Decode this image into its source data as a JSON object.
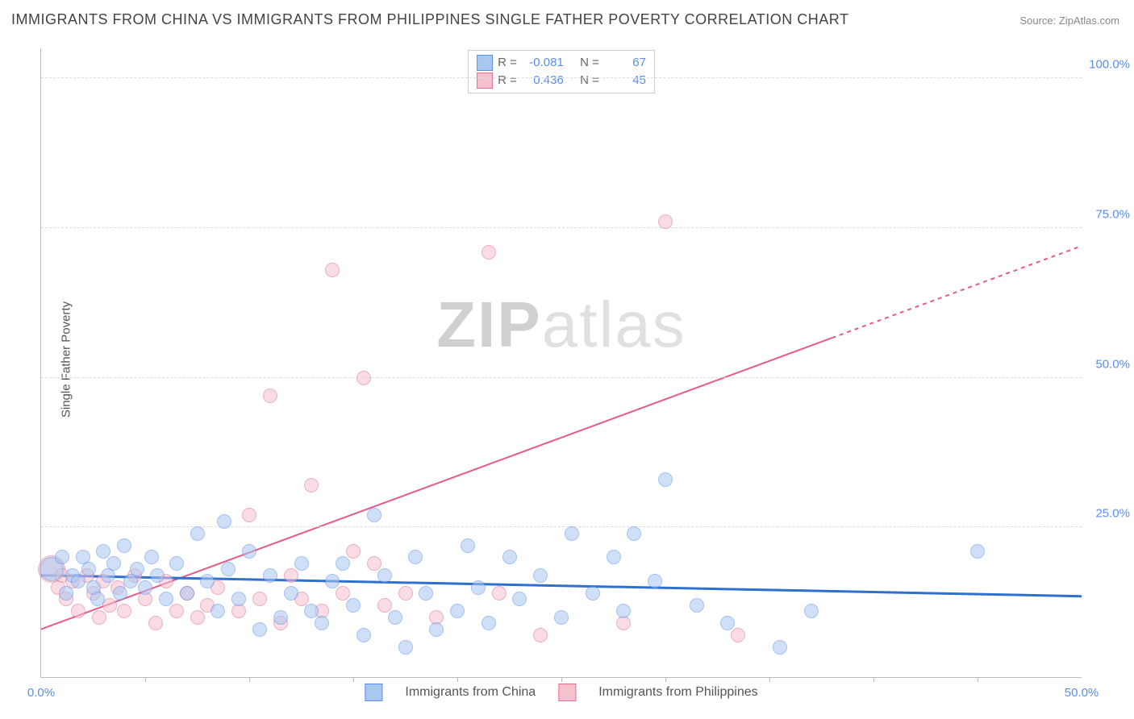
{
  "title": "IMMIGRANTS FROM CHINA VS IMMIGRANTS FROM PHILIPPINES SINGLE FATHER POVERTY CORRELATION CHART",
  "source": "Source: ZipAtlas.com",
  "y_axis_label": "Single Father Poverty",
  "watermark": {
    "bold": "ZIP",
    "rest": "atlas"
  },
  "colors": {
    "series_a_fill": "#a9c8ef",
    "series_a_stroke": "#5b8def",
    "series_b_fill": "#f5c1cf",
    "series_b_stroke": "#e06f92",
    "axis_text": "#5b8def",
    "grid": "#dddddd",
    "title_text": "#444444",
    "trend_a": "#2f6fd0",
    "trend_b": "#e65a86"
  },
  "axes": {
    "xmin": 0.0,
    "xmax": 50.0,
    "ymin": 0.0,
    "ymax": 105.0,
    "x_ticks": [
      0.0,
      50.0
    ],
    "x_tick_labels": [
      "0.0%",
      "50.0%"
    ],
    "x_minor_ticks": [
      5,
      10,
      15,
      20,
      25,
      30,
      35,
      40,
      45
    ],
    "y_gridlines": [
      25.0,
      50.0,
      75.0,
      100.0
    ],
    "y_tick_labels": [
      "25.0%",
      "50.0%",
      "75.0%",
      "100.0%"
    ]
  },
  "stats": {
    "rows": [
      {
        "swatch": "a",
        "R": "-0.081",
        "N": "67"
      },
      {
        "swatch": "b",
        "R": "0.436",
        "N": "45"
      }
    ],
    "R_label": "R =",
    "N_label": "N ="
  },
  "legend": {
    "a": "Immigrants from China",
    "b": "Immigrants from Philippines"
  },
  "point_style": {
    "radius": 8,
    "fill_opacity": 0.55,
    "stroke_width": 1
  },
  "trend_lines": {
    "a": {
      "x1": 0,
      "y1": 17.0,
      "x2": 50,
      "y2": 13.5,
      "stroke_width": 3,
      "dashed_from_x": null
    },
    "b": {
      "x1": 0,
      "y1": 8.0,
      "x2": 50,
      "y2": 72.0,
      "stroke_width": 2,
      "dashed_from_x": 38
    }
  },
  "series_a": [
    {
      "x": 0.5,
      "y": 18,
      "r": 14
    },
    {
      "x": 1.0,
      "y": 20
    },
    {
      "x": 1.2,
      "y": 14
    },
    {
      "x": 1.5,
      "y": 17
    },
    {
      "x": 1.8,
      "y": 16
    },
    {
      "x": 2.0,
      "y": 20
    },
    {
      "x": 2.3,
      "y": 18
    },
    {
      "x": 2.5,
      "y": 15
    },
    {
      "x": 2.7,
      "y": 13
    },
    {
      "x": 3.0,
      "y": 21
    },
    {
      "x": 3.2,
      "y": 17
    },
    {
      "x": 3.5,
      "y": 19
    },
    {
      "x": 3.8,
      "y": 14
    },
    {
      "x": 4.0,
      "y": 22
    },
    {
      "x": 4.3,
      "y": 16
    },
    {
      "x": 4.6,
      "y": 18
    },
    {
      "x": 5.0,
      "y": 15
    },
    {
      "x": 5.3,
      "y": 20
    },
    {
      "x": 5.6,
      "y": 17
    },
    {
      "x": 6.0,
      "y": 13
    },
    {
      "x": 6.5,
      "y": 19
    },
    {
      "x": 7.0,
      "y": 14
    },
    {
      "x": 7.5,
      "y": 24
    },
    {
      "x": 8.0,
      "y": 16
    },
    {
      "x": 8.5,
      "y": 11
    },
    {
      "x": 8.8,
      "y": 26
    },
    {
      "x": 9.0,
      "y": 18
    },
    {
      "x": 9.5,
      "y": 13
    },
    {
      "x": 10.0,
      "y": 21
    },
    {
      "x": 10.5,
      "y": 8
    },
    {
      "x": 11.0,
      "y": 17
    },
    {
      "x": 11.5,
      "y": 10
    },
    {
      "x": 12.0,
      "y": 14
    },
    {
      "x": 12.5,
      "y": 19
    },
    {
      "x": 13.0,
      "y": 11
    },
    {
      "x": 13.5,
      "y": 9
    },
    {
      "x": 14.0,
      "y": 16
    },
    {
      "x": 14.5,
      "y": 19
    },
    {
      "x": 15.0,
      "y": 12
    },
    {
      "x": 15.5,
      "y": 7
    },
    {
      "x": 16.0,
      "y": 27
    },
    {
      "x": 16.5,
      "y": 17
    },
    {
      "x": 17.0,
      "y": 10
    },
    {
      "x": 17.5,
      "y": 5
    },
    {
      "x": 18.0,
      "y": 20
    },
    {
      "x": 18.5,
      "y": 14
    },
    {
      "x": 19.0,
      "y": 8
    },
    {
      "x": 20.0,
      "y": 11
    },
    {
      "x": 20.5,
      "y": 22
    },
    {
      "x": 21.0,
      "y": 15
    },
    {
      "x": 21.5,
      "y": 9
    },
    {
      "x": 22.5,
      "y": 20
    },
    {
      "x": 23.0,
      "y": 13
    },
    {
      "x": 24.0,
      "y": 17
    },
    {
      "x": 25.0,
      "y": 10
    },
    {
      "x": 25.5,
      "y": 24
    },
    {
      "x": 26.5,
      "y": 14
    },
    {
      "x": 27.5,
      "y": 20
    },
    {
      "x": 28.0,
      "y": 11
    },
    {
      "x": 28.5,
      "y": 24
    },
    {
      "x": 29.5,
      "y": 16
    },
    {
      "x": 30.0,
      "y": 33
    },
    {
      "x": 31.5,
      "y": 12
    },
    {
      "x": 33.0,
      "y": 9
    },
    {
      "x": 35.5,
      "y": 5
    },
    {
      "x": 37.0,
      "y": 11
    },
    {
      "x": 45.0,
      "y": 21
    }
  ],
  "series_b": [
    {
      "x": 0.5,
      "y": 18,
      "r": 16
    },
    {
      "x": 0.8,
      "y": 15
    },
    {
      "x": 1.0,
      "y": 17
    },
    {
      "x": 1.2,
      "y": 13
    },
    {
      "x": 1.5,
      "y": 16
    },
    {
      "x": 1.8,
      "y": 11
    },
    {
      "x": 2.2,
      "y": 17
    },
    {
      "x": 2.5,
      "y": 14
    },
    {
      "x": 2.8,
      "y": 10
    },
    {
      "x": 3.0,
      "y": 16
    },
    {
      "x": 3.3,
      "y": 12
    },
    {
      "x": 3.7,
      "y": 15
    },
    {
      "x": 4.0,
      "y": 11
    },
    {
      "x": 4.5,
      "y": 17
    },
    {
      "x": 5.0,
      "y": 13
    },
    {
      "x": 5.5,
      "y": 9
    },
    {
      "x": 6.0,
      "y": 16
    },
    {
      "x": 6.5,
      "y": 11
    },
    {
      "x": 7.0,
      "y": 14
    },
    {
      "x": 7.5,
      "y": 10
    },
    {
      "x": 8.0,
      "y": 12
    },
    {
      "x": 8.5,
      "y": 15
    },
    {
      "x": 9.5,
      "y": 11
    },
    {
      "x": 10.0,
      "y": 27
    },
    {
      "x": 10.5,
      "y": 13
    },
    {
      "x": 11.0,
      "y": 47
    },
    {
      "x": 11.5,
      "y": 9
    },
    {
      "x": 12.0,
      "y": 17
    },
    {
      "x": 12.5,
      "y": 13
    },
    {
      "x": 13.0,
      "y": 32
    },
    {
      "x": 13.5,
      "y": 11
    },
    {
      "x": 14.0,
      "y": 68
    },
    {
      "x": 14.5,
      "y": 14
    },
    {
      "x": 15.0,
      "y": 21
    },
    {
      "x": 15.5,
      "y": 50
    },
    {
      "x": 16.0,
      "y": 19
    },
    {
      "x": 16.5,
      "y": 12
    },
    {
      "x": 17.5,
      "y": 14
    },
    {
      "x": 19.0,
      "y": 10
    },
    {
      "x": 21.5,
      "y": 71
    },
    {
      "x": 22.0,
      "y": 14
    },
    {
      "x": 24.0,
      "y": 7
    },
    {
      "x": 28.0,
      "y": 9
    },
    {
      "x": 30.0,
      "y": 76
    },
    {
      "x": 33.5,
      "y": 7
    }
  ]
}
